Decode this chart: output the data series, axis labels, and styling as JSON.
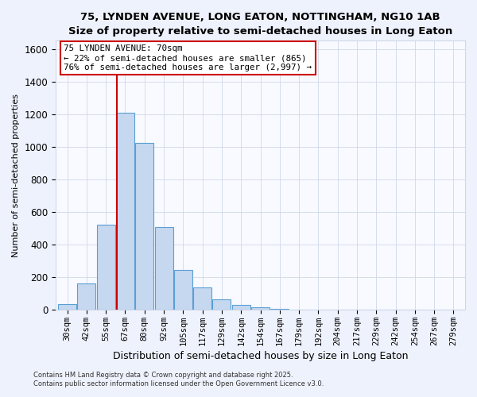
{
  "title": "75, LYNDEN AVENUE, LONG EATON, NOTTINGHAM, NG10 1AB",
  "subtitle": "Size of property relative to semi-detached houses in Long Eaton",
  "xlabel": "Distribution of semi-detached houses by size in Long Eaton",
  "ylabel": "Number of semi-detached properties",
  "bar_labels": [
    "30sqm",
    "42sqm",
    "55sqm",
    "67sqm",
    "80sqm",
    "92sqm",
    "105sqm",
    "117sqm",
    "129sqm",
    "142sqm",
    "154sqm",
    "167sqm",
    "179sqm",
    "192sqm",
    "204sqm",
    "217sqm",
    "229sqm",
    "242sqm",
    "254sqm",
    "267sqm",
    "279sqm"
  ],
  "bar_values": [
    35,
    160,
    520,
    1210,
    1025,
    505,
    245,
    135,
    65,
    30,
    15,
    5,
    0,
    0,
    0,
    0,
    0,
    0,
    0,
    0,
    0
  ],
  "bar_color": "#c5d8f0",
  "bar_edge_color": "#5a9fd4",
  "vline_color": "#cc0000",
  "annotation_title": "75 LYNDEN AVENUE: 70sqm",
  "annotation_line1": "← 22% of semi-detached houses are smaller (865)",
  "annotation_line2": "76% of semi-detached houses are larger (2,997) →",
  "annotation_box_color": "#ffffff",
  "annotation_box_edge": "#cc0000",
  "ylim": [
    0,
    1650
  ],
  "yticks": [
    0,
    200,
    400,
    600,
    800,
    1000,
    1200,
    1400,
    1600
  ],
  "footer1": "Contains HM Land Registry data © Crown copyright and database right 2025.",
  "footer2": "Contains public sector information licensed under the Open Government Licence v3.0.",
  "bg_color": "#eef2fc",
  "plot_bg_color": "#f8faff",
  "grid_color": "#d0d8e8"
}
